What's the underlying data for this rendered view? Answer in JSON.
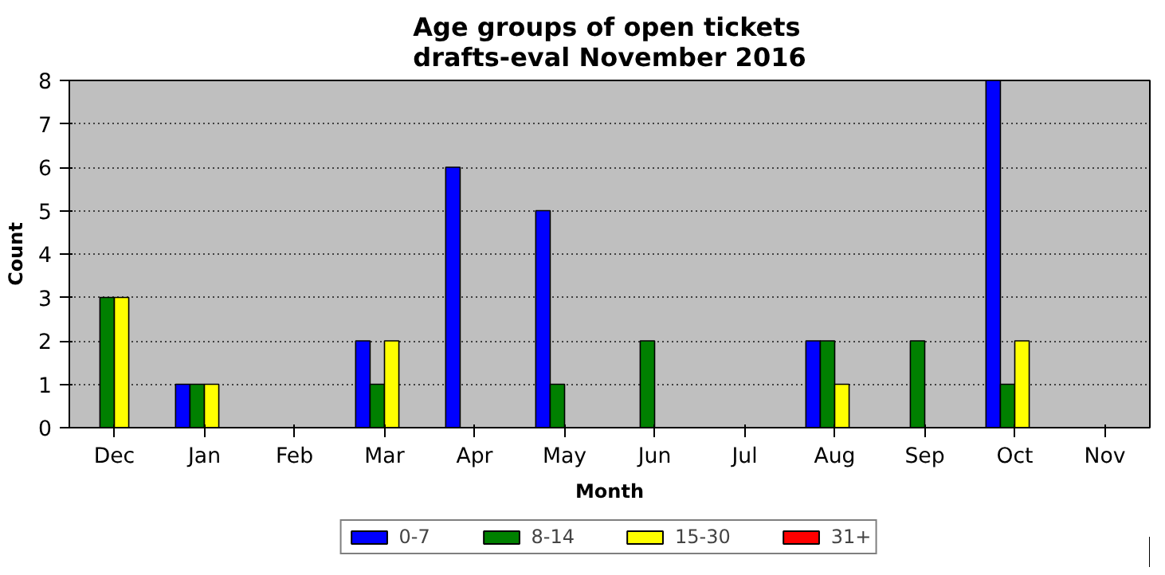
{
  "chart_data": {
    "type": "bar",
    "title": "Age groups of open tickets\ndrafts-eval November 2016",
    "xlabel": "Month",
    "ylabel": "Count",
    "categories": [
      "Dec",
      "Jan",
      "Feb",
      "Mar",
      "Apr",
      "May",
      "Jun",
      "Jul",
      "Aug",
      "Sep",
      "Oct",
      "Nov"
    ],
    "series": [
      {
        "name": "0-7",
        "color": "#0000ff",
        "values": [
          0,
          1,
          0,
          2,
          6,
          5,
          0,
          0,
          2,
          0,
          8,
          0
        ]
      },
      {
        "name": "8-14",
        "color": "#008000",
        "values": [
          3,
          1,
          0,
          1,
          0,
          1,
          2,
          0,
          2,
          2,
          1,
          0
        ]
      },
      {
        "name": "15-30",
        "color": "#ffff00",
        "values": [
          3,
          1,
          0,
          2,
          0,
          0,
          0,
          0,
          1,
          0,
          2,
          0
        ]
      },
      {
        "name": "31+",
        "color": "#ff0000",
        "values": [
          0,
          0,
          0,
          0,
          0,
          0,
          0,
          0,
          0,
          0,
          0,
          0
        ]
      }
    ],
    "ylim": [
      0,
      8
    ],
    "yticks": [
      0,
      1,
      2,
      3,
      4,
      5,
      6,
      7,
      8
    ],
    "grid": "y",
    "legend": "bottom"
  }
}
